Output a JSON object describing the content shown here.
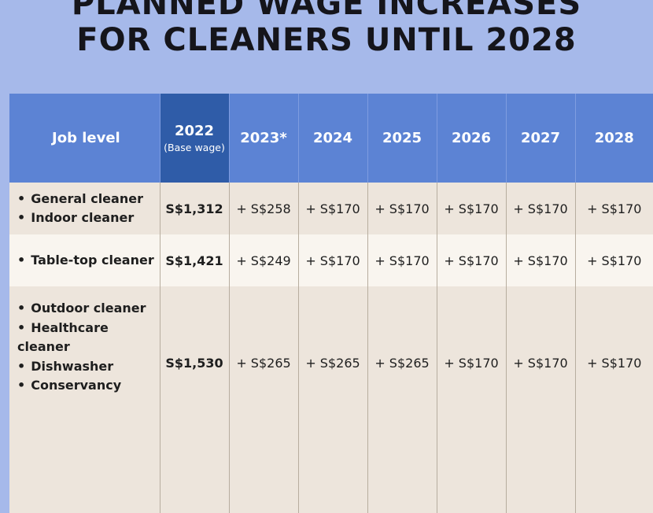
{
  "title": {
    "line1": "PLANNED WAGE INCREASES",
    "line2": "FOR CLEANERS UNTIL 2028"
  },
  "colors": {
    "background": "#a6b9ea",
    "header": "#5c83d4",
    "header_base": "#2f5ca8",
    "row_shaded": "#ede5dc",
    "row_light": "#f9f5ef"
  },
  "chart_data": {
    "type": "table",
    "title": "PLANNED WAGE INCREASES FOR CLEANERS UNTIL 2028",
    "columns": [
      {
        "label": "Job level",
        "sub": ""
      },
      {
        "label": "2022",
        "sub": "(Base wage)"
      },
      {
        "label": "2023*",
        "sub": ""
      },
      {
        "label": "2024",
        "sub": ""
      },
      {
        "label": "2025",
        "sub": ""
      },
      {
        "label": "2026",
        "sub": ""
      },
      {
        "label": "2027",
        "sub": ""
      },
      {
        "label": "2028",
        "sub": ""
      }
    ],
    "rows": [
      {
        "jobs": [
          "General cleaner",
          "Indoor cleaner"
        ],
        "cells": [
          "S$1,312",
          "+ S$258",
          "+ S$170",
          "+ S$170",
          "+ S$170",
          "+ S$170",
          "+ S$170"
        ]
      },
      {
        "jobs": [
          "Table-top cleaner"
        ],
        "cells": [
          "S$1,421",
          "+ S$249",
          "+ S$170",
          "+ S$170",
          "+ S$170",
          "+ S$170",
          "+ S$170"
        ]
      },
      {
        "jobs": [
          "Outdoor cleaner",
          "Healthcare cleaner",
          "Dishwasher",
          "Conservancy"
        ],
        "cells": [
          "S$1,530",
          "+ S$265",
          "+ S$265",
          "+ S$265",
          "+ S$170",
          "+ S$170",
          "+ S$170"
        ]
      }
    ]
  }
}
